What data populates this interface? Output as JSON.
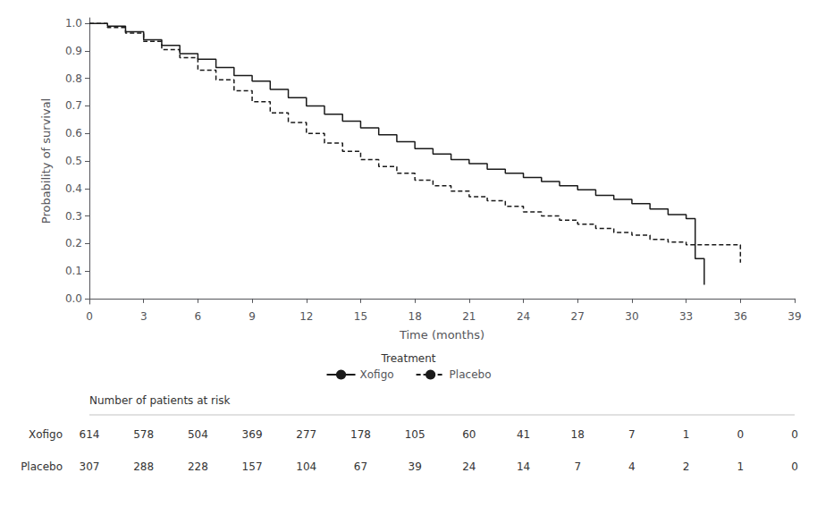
{
  "chart_data": {
    "type": "step",
    "xlabel": "Time (months)",
    "ylabel": "Probability of survival",
    "xlim": [
      0,
      39
    ],
    "ylim": [
      -0.02,
      1.02
    ],
    "xticks": [
      0,
      3,
      6,
      9,
      12,
      15,
      18,
      21,
      24,
      27,
      30,
      33,
      36,
      39
    ],
    "yticks": [
      {
        "value": 0.0,
        "label": "0.0"
      },
      0.1,
      0.2,
      0.3,
      0.4,
      0.5,
      0.6,
      0.7,
      0.8,
      0.9,
      {
        "value": 1.0,
        "label": "1.0"
      }
    ],
    "grid": false,
    "legend": "bottom",
    "legend_title": "Treatment",
    "series": [
      {
        "name": "Xofigo",
        "color": "#1a1a1a",
        "line_style": "solid",
        "x": [
          0,
          1,
          2,
          3,
          4,
          5,
          6,
          7,
          8,
          9,
          10,
          11,
          12,
          13,
          14,
          15,
          16,
          17,
          18,
          19,
          20,
          21,
          22,
          23,
          24,
          25,
          26,
          27,
          28,
          29,
          30,
          31,
          32,
          33,
          33.5,
          34
        ],
        "values": [
          1.0,
          0.99,
          0.97,
          0.94,
          0.92,
          0.89,
          0.87,
          0.84,
          0.81,
          0.79,
          0.76,
          0.73,
          0.7,
          0.67,
          0.645,
          0.62,
          0.595,
          0.57,
          0.545,
          0.525,
          0.505,
          0.49,
          0.47,
          0.455,
          0.44,
          0.425,
          0.41,
          0.395,
          0.375,
          0.36,
          0.345,
          0.325,
          0.305,
          0.29,
          0.145,
          0.05
        ]
      },
      {
        "name": "Placebo",
        "color": "#1a1a1a",
        "line_style": "dashed",
        "x": [
          0,
          1,
          2,
          3,
          4,
          5,
          6,
          7,
          8,
          9,
          10,
          11,
          12,
          13,
          14,
          15,
          16,
          17,
          18,
          19,
          20,
          21,
          22,
          23,
          24,
          25,
          26,
          27,
          28,
          29,
          30,
          31,
          32,
          33,
          36
        ],
        "values": [
          1.0,
          0.985,
          0.965,
          0.935,
          0.905,
          0.875,
          0.83,
          0.795,
          0.755,
          0.715,
          0.675,
          0.64,
          0.6,
          0.565,
          0.535,
          0.505,
          0.48,
          0.455,
          0.43,
          0.41,
          0.39,
          0.37,
          0.355,
          0.335,
          0.315,
          0.3,
          0.285,
          0.27,
          0.255,
          0.24,
          0.23,
          0.215,
          0.205,
          0.195,
          0.13
        ]
      }
    ],
    "at_risk": {
      "title": "Number of patients at risk",
      "x": [
        0,
        3,
        6,
        9,
        12,
        15,
        18,
        21,
        24,
        27,
        30,
        33,
        36,
        39
      ],
      "series": [
        {
          "name": "Xofigo",
          "values": [
            614,
            578,
            504,
            369,
            277,
            178,
            105,
            60,
            41,
            18,
            7,
            1,
            0,
            0
          ]
        },
        {
          "name": "Placebo",
          "values": [
            307,
            288,
            228,
            157,
            104,
            67,
            39,
            24,
            14,
            7,
            4,
            2,
            1,
            0
          ]
        }
      ]
    }
  }
}
